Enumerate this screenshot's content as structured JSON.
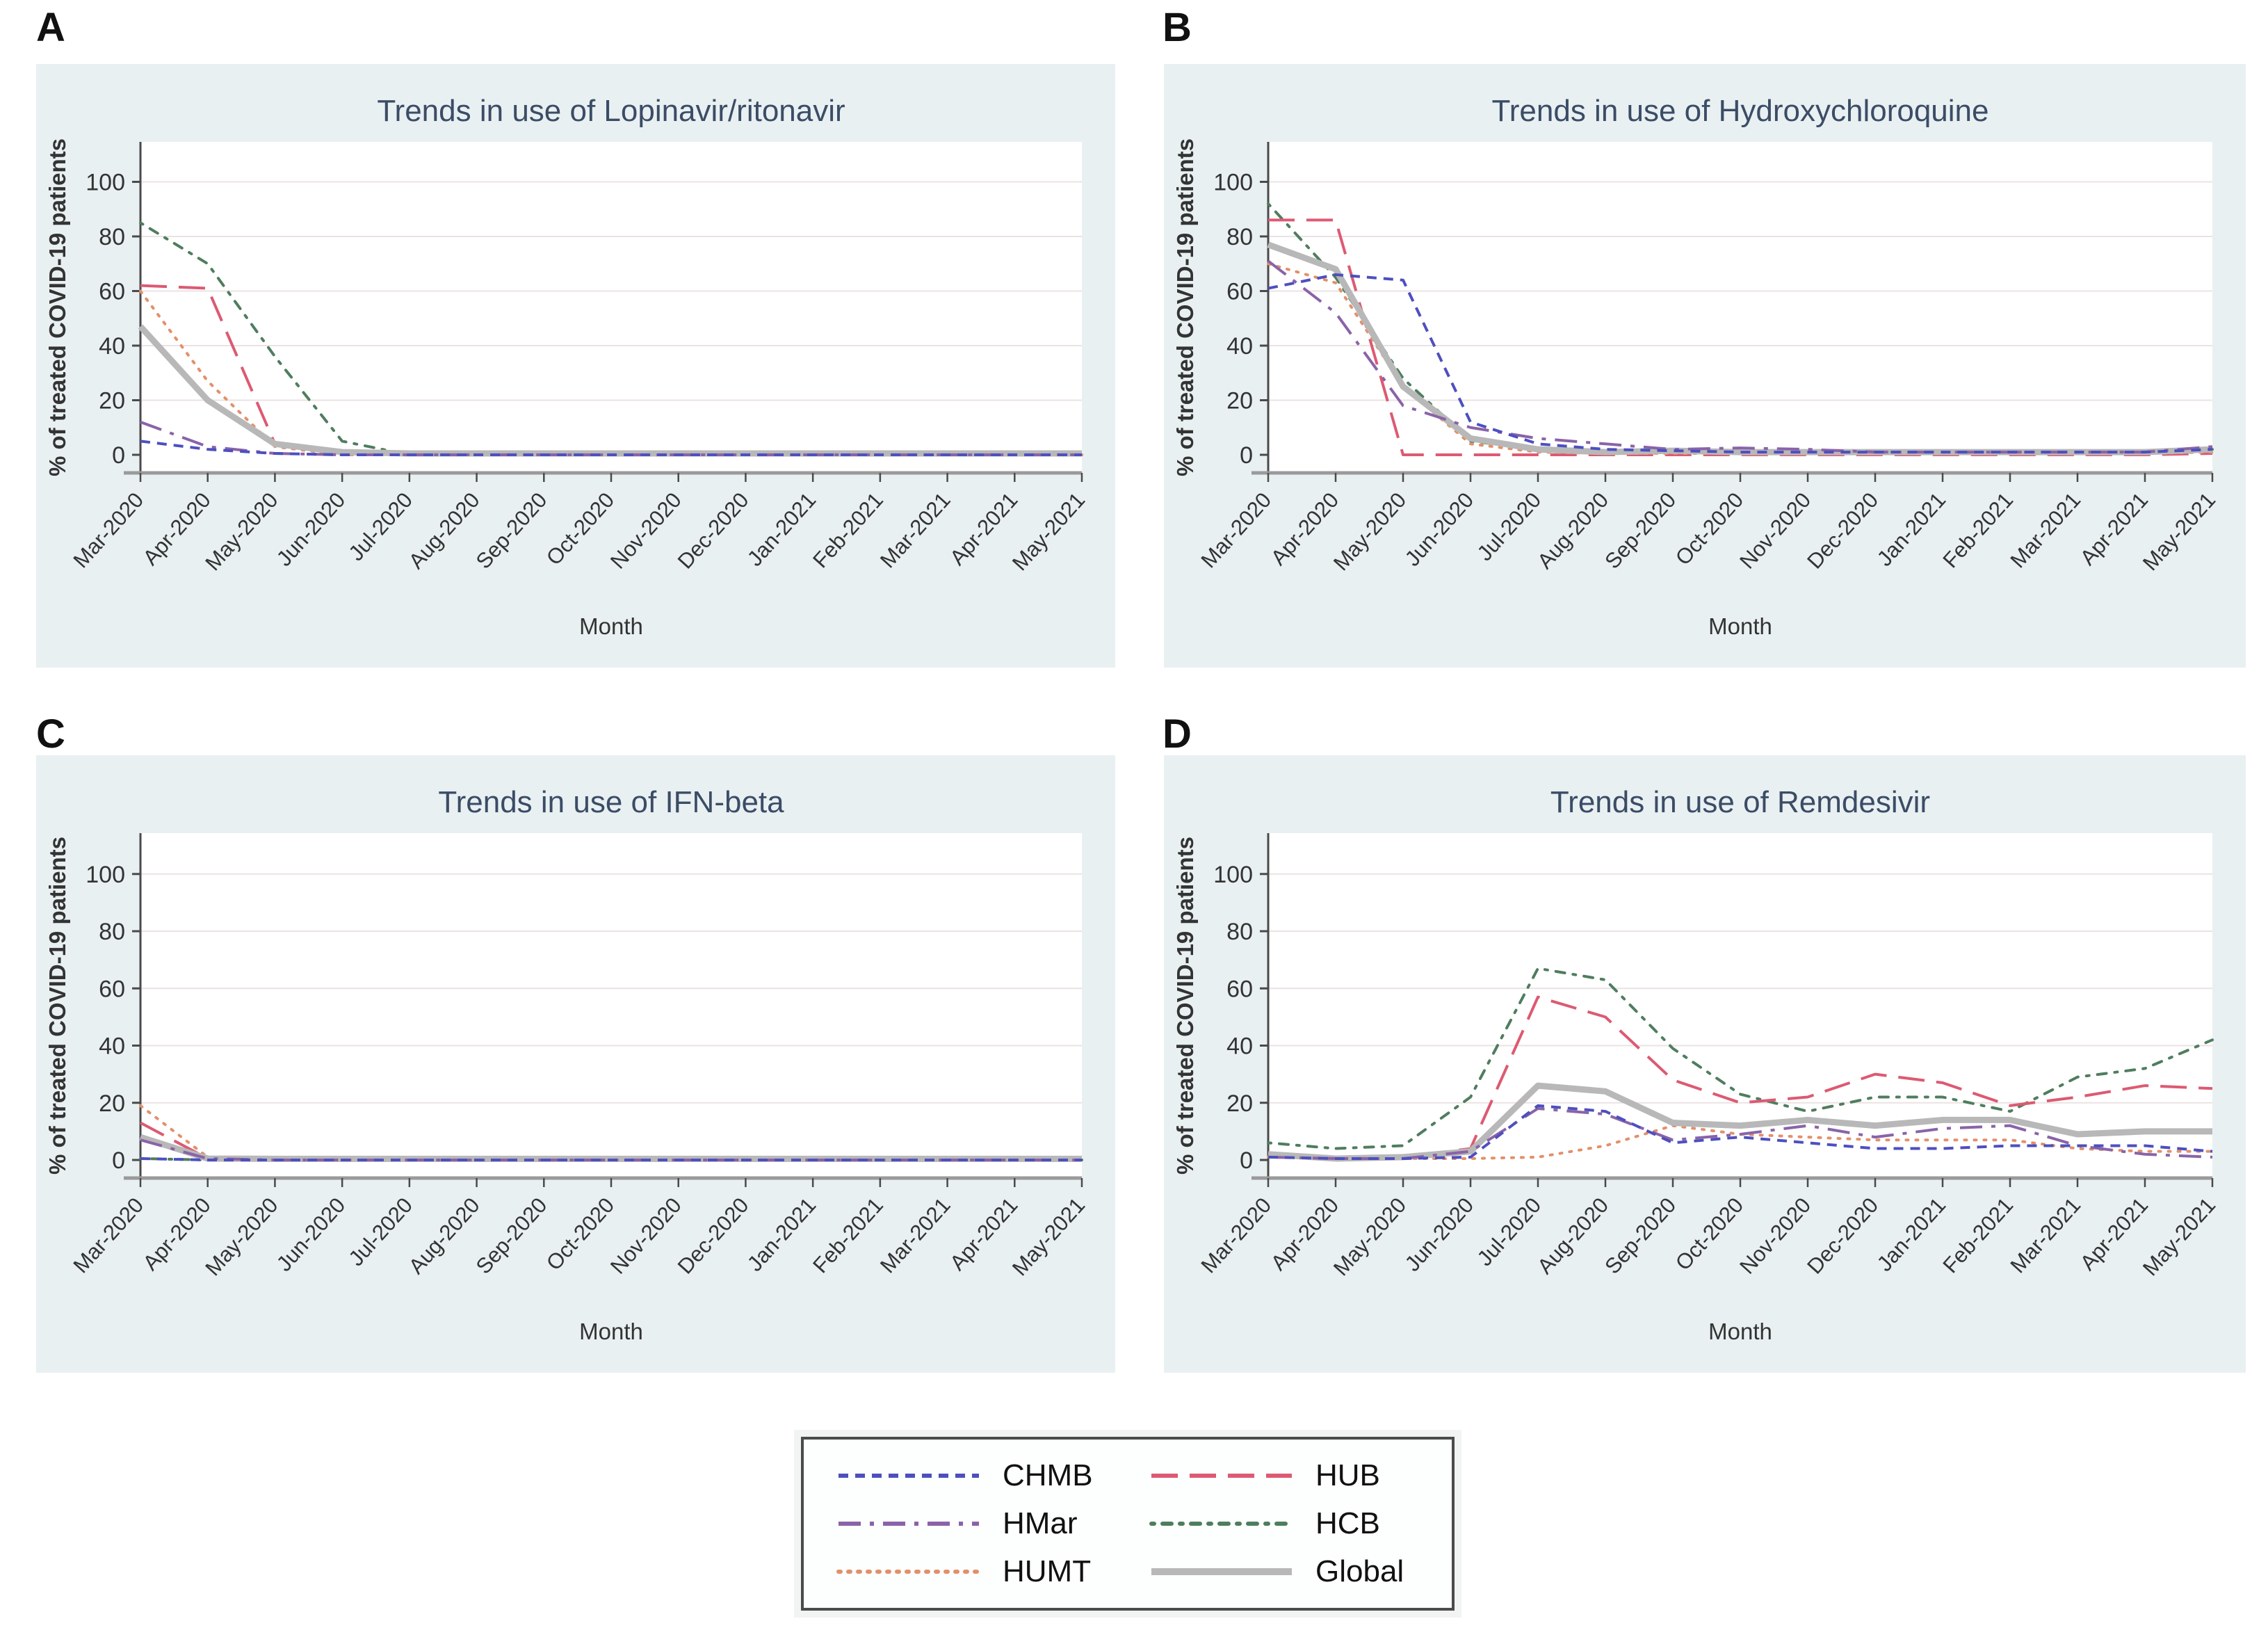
{
  "figure": {
    "panel_letters": [
      "A",
      "B",
      "C",
      "D"
    ],
    "background": "#ffffff",
    "panel_background": "#e9f0f2",
    "plot_background": "#ffffff",
    "gridline_color": "#ece2e3",
    "title_color": "#3b4c66",
    "axis_line_color": "#4a4a4a",
    "x_axis_line_color": "#9a9a9a",
    "tick_label_color": "#333333"
  },
  "axes": {
    "ylabel": "% of treated COVID-19 patients",
    "xlabel": "Month",
    "yticks": [
      0,
      20,
      40,
      60,
      80,
      100
    ],
    "ylim": [
      0,
      107
    ]
  },
  "months": [
    "Mar-2020",
    "Apr-2020",
    "May-2020",
    "Jun-2020",
    "Jul-2020",
    "Aug-2020",
    "Sep-2020",
    "Oct-2020",
    "Nov-2020",
    "Dec-2020",
    "Jan-2021",
    "Feb-2021",
    "Mar-2021",
    "Apr-2021",
    "May-2021"
  ],
  "series_meta": [
    {
      "key": "CHMB",
      "label": "CHMB",
      "color": "#4d4fbf",
      "dash": "14,10",
      "width": 4,
      "cap": "butt"
    },
    {
      "key": "HMar",
      "label": "HMar",
      "color": "#8a63a8",
      "dash": "32,13,6,13",
      "width": 4,
      "cap": "butt"
    },
    {
      "key": "HUMT",
      "label": "HUMT",
      "color": "#e2906a",
      "dash": "3,11",
      "width": 4,
      "cap": "round"
    },
    {
      "key": "HUB",
      "label": "HUB",
      "color": "#dc5a72",
      "dash": "38,17",
      "width": 4,
      "cap": "butt"
    },
    {
      "key": "HCB",
      "label": "HCB",
      "color": "#4f7d5f",
      "dash": "4,12,13,12",
      "width": 4,
      "cap": "round"
    },
    {
      "key": "Global",
      "label": "Global",
      "color": "#b8b8b8",
      "dash": "",
      "width": 9,
      "cap": "butt"
    }
  ],
  "draw_order": [
    "HCB",
    "HUB",
    "HUMT",
    "Global",
    "HMar",
    "CHMB"
  ],
  "legend": {
    "items": [
      {
        "key": "CHMB",
        "label": "CHMB"
      },
      {
        "key": "HMar",
        "label": "HMar"
      },
      {
        "key": "HUMT",
        "label": "HUMT"
      },
      {
        "key": "HUB",
        "label": "HUB"
      },
      {
        "key": "HCB",
        "label": "HCB"
      },
      {
        "key": "Global",
        "label": "Global"
      }
    ]
  },
  "chart_data": [
    {
      "id": "A",
      "type": "line",
      "title": "Trends in use of Lopinavir/ritonavir",
      "xlabel": "Month",
      "ylabel": "% of treated COVID-19 patients",
      "ylim": [
        0,
        107
      ],
      "categories": [
        "Mar-2020",
        "Apr-2020",
        "May-2020",
        "Jun-2020",
        "Jul-2020",
        "Aug-2020",
        "Sep-2020",
        "Oct-2020",
        "Nov-2020",
        "Dec-2020",
        "Jan-2021",
        "Feb-2021",
        "Mar-2021",
        "Apr-2021",
        "May-2021"
      ],
      "series": [
        {
          "name": "CHMB",
          "values": [
            5,
            2,
            0.5,
            0,
            0,
            0,
            0,
            0,
            0,
            0,
            0,
            0,
            0,
            0,
            0
          ]
        },
        {
          "name": "HMar",
          "values": [
            12,
            3,
            0.5,
            0,
            0,
            0,
            0,
            0,
            0,
            0,
            0,
            0,
            0,
            0,
            0
          ]
        },
        {
          "name": "HUMT",
          "values": [
            60,
            27,
            3,
            0,
            0,
            0,
            0,
            0,
            0,
            0,
            0,
            0,
            0,
            0,
            0
          ]
        },
        {
          "name": "HUB",
          "values": [
            62,
            61,
            4,
            0.5,
            0,
            0,
            0,
            0,
            0,
            0,
            0,
            0,
            0,
            0,
            0
          ]
        },
        {
          "name": "HCB",
          "values": [
            85,
            70,
            36,
            5,
            0,
            0,
            0,
            0,
            0,
            0,
            0,
            0,
            0,
            0,
            0
          ]
        },
        {
          "name": "Global",
          "values": [
            47,
            20,
            4,
            1,
            0.5,
            0.5,
            0.5,
            0.5,
            0.5,
            0.5,
            0.5,
            0.5,
            0.5,
            0.5,
            0.5
          ]
        }
      ]
    },
    {
      "id": "B",
      "type": "line",
      "title": "Trends in use of Hydroxychloroquine",
      "xlabel": "Month",
      "ylabel": "% of treated COVID-19 patients",
      "ylim": [
        0,
        107
      ],
      "categories": [
        "Mar-2020",
        "Apr-2020",
        "May-2020",
        "Jun-2020",
        "Jul-2020",
        "Aug-2020",
        "Sep-2020",
        "Oct-2020",
        "Nov-2020",
        "Dec-2020",
        "Jan-2021",
        "Feb-2021",
        "Mar-2021",
        "Apr-2021",
        "May-2021"
      ],
      "series": [
        {
          "name": "CHMB",
          "values": [
            61,
            66,
            64,
            12,
            4,
            2,
            1.5,
            1,
            1,
            1,
            1,
            1,
            1,
            1,
            2
          ]
        },
        {
          "name": "HMar",
          "values": [
            71,
            52,
            18,
            10,
            6,
            4,
            2,
            2.5,
            2,
            1,
            1,
            1,
            1,
            1,
            3
          ]
        },
        {
          "name": "HUMT",
          "values": [
            70,
            63,
            25,
            4,
            1,
            0.5,
            0.5,
            0.5,
            0.5,
            0.5,
            0.5,
            0.5,
            0.5,
            0.5,
            1
          ]
        },
        {
          "name": "HUB",
          "values": [
            86,
            86,
            0,
            0,
            0,
            0,
            0,
            0,
            0,
            0,
            0,
            0,
            0,
            0,
            0.5
          ]
        },
        {
          "name": "HCB",
          "values": [
            92,
            65,
            28,
            5,
            2,
            1,
            2,
            1,
            1,
            1,
            1,
            1,
            1,
            1,
            2
          ]
        },
        {
          "name": "Global",
          "values": [
            77,
            68,
            25,
            6,
            2,
            1,
            1.5,
            1,
            1,
            1,
            1,
            1,
            1,
            1,
            2
          ]
        }
      ]
    },
    {
      "id": "C",
      "type": "line",
      "title": "Trends in use of  IFN-beta",
      "xlabel": "Month",
      "ylabel": "% of treated COVID-19 patients",
      "ylim": [
        0,
        107
      ],
      "categories": [
        "Mar-2020",
        "Apr-2020",
        "May-2020",
        "Jun-2020",
        "Jul-2020",
        "Aug-2020",
        "Sep-2020",
        "Oct-2020",
        "Nov-2020",
        "Dec-2020",
        "Jan-2021",
        "Feb-2021",
        "Mar-2021",
        "Apr-2021",
        "May-2021"
      ],
      "series": [
        {
          "name": "CHMB",
          "values": [
            0.5,
            0,
            0,
            0,
            0,
            0,
            0,
            0,
            0,
            0,
            0,
            0,
            0,
            0,
            0
          ]
        },
        {
          "name": "HMar",
          "values": [
            7,
            0.5,
            0,
            0,
            0,
            0,
            0,
            0,
            0,
            0,
            0,
            0,
            0,
            0,
            0
          ]
        },
        {
          "name": "HUMT",
          "values": [
            19,
            1,
            0,
            0,
            0,
            0,
            0,
            0,
            0,
            0,
            0,
            0,
            0,
            0,
            0
          ]
        },
        {
          "name": "HUB",
          "values": [
            13,
            0.5,
            0,
            0,
            0,
            0,
            0,
            0,
            0,
            0,
            0,
            0,
            0,
            0,
            0.3
          ]
        },
        {
          "name": "HCB",
          "values": [
            0.5,
            0,
            0,
            0,
            0,
            0,
            0,
            0,
            0,
            0,
            0,
            0,
            0,
            0,
            0
          ]
        },
        {
          "name": "Global",
          "values": [
            8,
            0.5,
            0.4,
            0.4,
            0.4,
            0.4,
            0.4,
            0.4,
            0.4,
            0.4,
            0.4,
            0.4,
            0.4,
            0.4,
            0.4
          ]
        }
      ]
    },
    {
      "id": "D",
      "type": "line",
      "title": "Trends in use of Remdesivir",
      "xlabel": "Month",
      "ylabel": "% of treated COVID-19 patients",
      "ylim": [
        0,
        107
      ],
      "categories": [
        "Mar-2020",
        "Apr-2020",
        "May-2020",
        "Jun-2020",
        "Jul-2020",
        "Aug-2020",
        "Sep-2020",
        "Oct-2020",
        "Nov-2020",
        "Dec-2020",
        "Jan-2021",
        "Feb-2021",
        "Mar-2021",
        "Apr-2021",
        "May-2021"
      ],
      "series": [
        {
          "name": "CHMB",
          "values": [
            1,
            0.5,
            0.5,
            1,
            19,
            17,
            6,
            8,
            6,
            4,
            4,
            5,
            5,
            5,
            3
          ]
        },
        {
          "name": "HMar",
          "values": [
            1,
            0.5,
            0.5,
            3,
            18,
            16,
            7,
            9,
            12,
            8,
            11,
            12,
            5,
            2,
            1
          ]
        },
        {
          "name": "HUMT",
          "values": [
            1,
            0.5,
            0.5,
            0.5,
            1,
            5,
            12,
            9,
            8,
            7,
            7,
            7,
            4,
            3,
            3
          ]
        },
        {
          "name": "HUB",
          "values": [
            2,
            1,
            1,
            4,
            57,
            50,
            28,
            20,
            22,
            30,
            27,
            19,
            22,
            26,
            25
          ]
        },
        {
          "name": "HCB",
          "values": [
            6,
            4,
            5,
            22,
            67,
            63,
            39,
            23,
            17,
            22,
            22,
            17,
            29,
            32,
            42
          ]
        },
        {
          "name": "Global",
          "values": [
            2,
            0.5,
            1,
            3,
            26,
            24,
            13,
            12,
            14,
            12,
            14,
            14,
            9,
            10,
            10
          ]
        }
      ]
    }
  ]
}
